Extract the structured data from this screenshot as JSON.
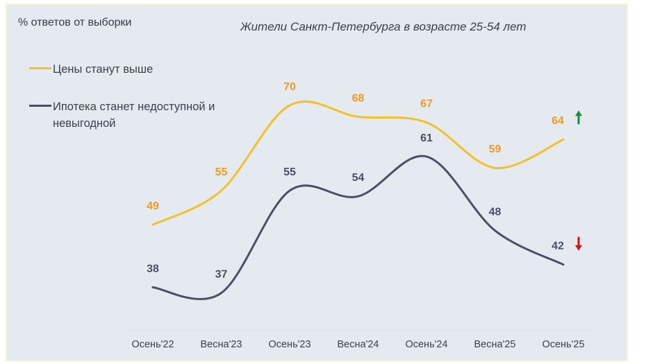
{
  "chart_data": {
    "type": "line",
    "title": "Жители Санкт-Петербурга в возрасте 25-54 лет",
    "ylabel": "% ответов от выборки",
    "xlabel": "",
    "categories": [
      "Осень'22",
      "Весна'23",
      "Осень'23",
      "Весна'24",
      "Осень'24",
      "Весна'25",
      "Осень'25"
    ],
    "series": [
      {
        "name": "Цены станут выше",
        "values": [
          49,
          55,
          70,
          68,
          67,
          59,
          64
        ],
        "color": "#f5bf2a",
        "label_color": "#f29a1e",
        "trend": "up",
        "trend_color": "#1e8a3c"
      },
      {
        "name": "Ипотека станет недоступной и невыгодной",
        "values": [
          38,
          37,
          55,
          54,
          61,
          48,
          42
        ],
        "color": "#4a4f63",
        "label_color": "#4a4f63",
        "trend": "down",
        "trend_color": "#d0121b"
      }
    ],
    "legend_position": "top-left",
    "grid": false
  }
}
